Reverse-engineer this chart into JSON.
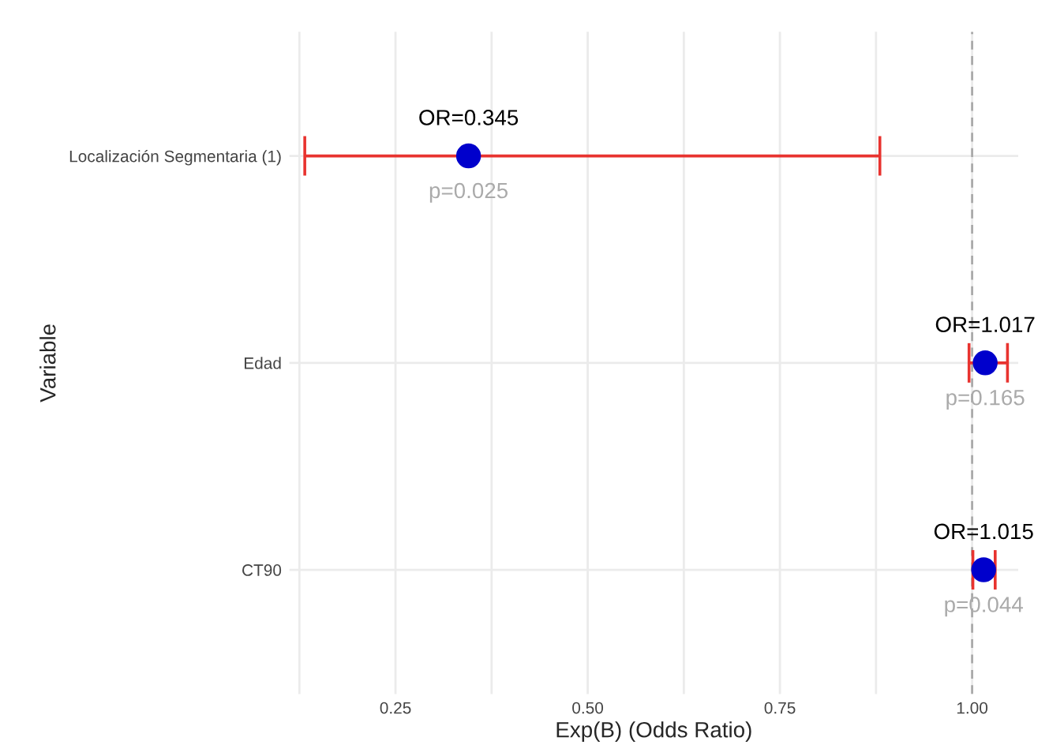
{
  "chart_data": {
    "type": "scatter",
    "orientation": "horizontal",
    "xlabel": "Exp(B) (Odds Ratio)",
    "ylabel": "Variable",
    "categories": [
      "Localización Segmentaria (1)",
      "Edad",
      "CT90"
    ],
    "series": [
      {
        "color": "#0000cc",
        "values": [
          0.345,
          1.017,
          1.015
        ],
        "errors": [
          [
            0.132,
            0.88
          ],
          [
            0.996,
            1.046
          ],
          [
            1.001,
            1.03
          ]
        ],
        "value_labels": [
          "OR=0.345",
          "OR=1.017",
          "OR=1.015"
        ]
      }
    ],
    "annotations": [
      {
        "text": "p=0.025",
        "x": 0.345,
        "y": "Localización Segmentaria (1)"
      },
      {
        "text": "p=0.165",
        "x": 1.017,
        "y": "Edad"
      },
      {
        "text": "p=0.044",
        "x": 1.015,
        "y": "CT90"
      }
    ],
    "ref_lines": [
      {
        "axis": "x",
        "value": 1.0,
        "color": "#aaaaaa",
        "line_style": "dashed"
      }
    ],
    "xlim": [
      0.112,
      1.06
    ],
    "xticks": [
      {
        "value": 0.125,
        "label": null
      },
      {
        "value": 0.25,
        "label": "0.25"
      },
      {
        "value": 0.375,
        "label": null
      },
      {
        "value": 0.5,
        "label": "0.50"
      },
      {
        "value": 0.625,
        "label": null
      },
      {
        "value": 0.75,
        "label": "0.75"
      },
      {
        "value": 0.875,
        "label": null
      },
      {
        "value": 1.0,
        "label": "1.00"
      }
    ],
    "grid": true,
    "marker": "circle"
  }
}
